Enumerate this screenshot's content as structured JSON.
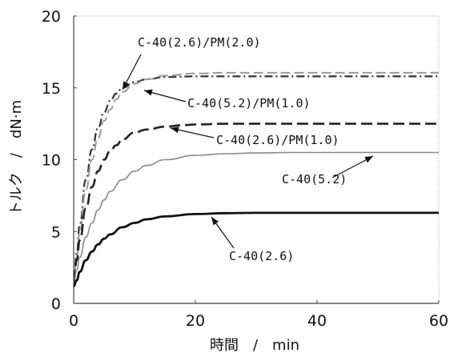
{
  "chart_data": {
    "type": "line",
    "xlabel": "時間　/　min",
    "ylabel": "トルク　/　dN·m",
    "xlim": [
      0,
      60
    ],
    "ylim": [
      0,
      20
    ],
    "xticks": [
      0,
      20,
      40,
      60
    ],
    "yticks": [
      0,
      5,
      10,
      15,
      20
    ],
    "grid": false,
    "series": [
      {
        "name": "C-40(2.6)/PM(2.0)",
        "style": "dash-dot",
        "color": "#333333",
        "x": [
          0,
          0.5,
          1,
          2,
          3,
          4,
          5,
          6,
          7,
          8,
          10,
          12,
          15,
          20,
          25,
          30,
          40,
          50,
          60
        ],
        "y": [
          1.5,
          3.5,
          5.5,
          8.6,
          10.7,
          12.2,
          13.3,
          14.1,
          14.6,
          15.0,
          15.4,
          15.6,
          15.75,
          15.8,
          15.8,
          15.8,
          15.8,
          15.8,
          15.8
        ]
      },
      {
        "name": "C-40(5.2)/PM(1.0)",
        "style": "dashed",
        "color": "#9a9a9a",
        "x": [
          0,
          0.5,
          1,
          2,
          3,
          4,
          5,
          6,
          7,
          8,
          10,
          12,
          15,
          20,
          25,
          30,
          40,
          50,
          60
        ],
        "y": [
          1.4,
          3.2,
          5.0,
          7.9,
          10.0,
          11.5,
          12.7,
          13.5,
          14.2,
          14.7,
          15.3,
          15.6,
          15.85,
          16.0,
          16.05,
          16.05,
          16.05,
          16.05,
          16.05
        ]
      },
      {
        "name": "C-40(2.6)/PM(1.0)",
        "style": "long-dash",
        "color": "#222222",
        "x": [
          0,
          0.5,
          1,
          2,
          3,
          4,
          5,
          6,
          7,
          8,
          10,
          12,
          15,
          18,
          20,
          25,
          30,
          40,
          50,
          60
        ],
        "y": [
          1.5,
          3.0,
          4.4,
          6.6,
          8.1,
          9.2,
          10.0,
          10.6,
          11.0,
          11.4,
          11.9,
          12.1,
          12.3,
          12.4,
          12.45,
          12.5,
          12.5,
          12.5,
          12.5,
          12.5
        ]
      },
      {
        "name": "C-40(5.2)",
        "style": "solid",
        "color": "#8a8a8a",
        "x": [
          0,
          0.5,
          1,
          2,
          3,
          4,
          5,
          6,
          8,
          10,
          12,
          15,
          20,
          25,
          30,
          35,
          40,
          50,
          60
        ],
        "y": [
          1.3,
          2.3,
          3.2,
          4.6,
          5.6,
          6.5,
          7.2,
          7.8,
          8.6,
          9.2,
          9.6,
          10.0,
          10.3,
          10.42,
          10.47,
          10.5,
          10.5,
          10.5,
          10.5
        ]
      },
      {
        "name": "C-40(2.6)",
        "style": "solid-thick",
        "color": "#111111",
        "x": [
          0,
          0.5,
          1,
          2,
          3,
          4,
          5,
          6,
          8,
          10,
          12,
          15,
          20,
          25,
          30,
          40,
          50,
          60
        ],
        "y": [
          1.2,
          1.6,
          2.2,
          3.0,
          3.6,
          4.1,
          4.5,
          4.8,
          5.3,
          5.6,
          5.85,
          6.05,
          6.22,
          6.28,
          6.3,
          6.3,
          6.3,
          6.3
        ]
      }
    ],
    "annotations": [
      {
        "text": "C-40(2.6)/PM(2.0)",
        "series": "C-40(2.6)/PM(2.0)"
      },
      {
        "text": "C-40(5.2)/PM(1.0)",
        "series": "C-40(5.2)/PM(1.0)"
      },
      {
        "text": "C-40(2.6)/PM(1.0)",
        "series": "C-40(2.6)/PM(1.0)"
      },
      {
        "text": "C-40(5.2)",
        "series": "C-40(5.2)"
      },
      {
        "text": "C-40(2.6)",
        "series": "C-40(2.6)"
      }
    ]
  }
}
